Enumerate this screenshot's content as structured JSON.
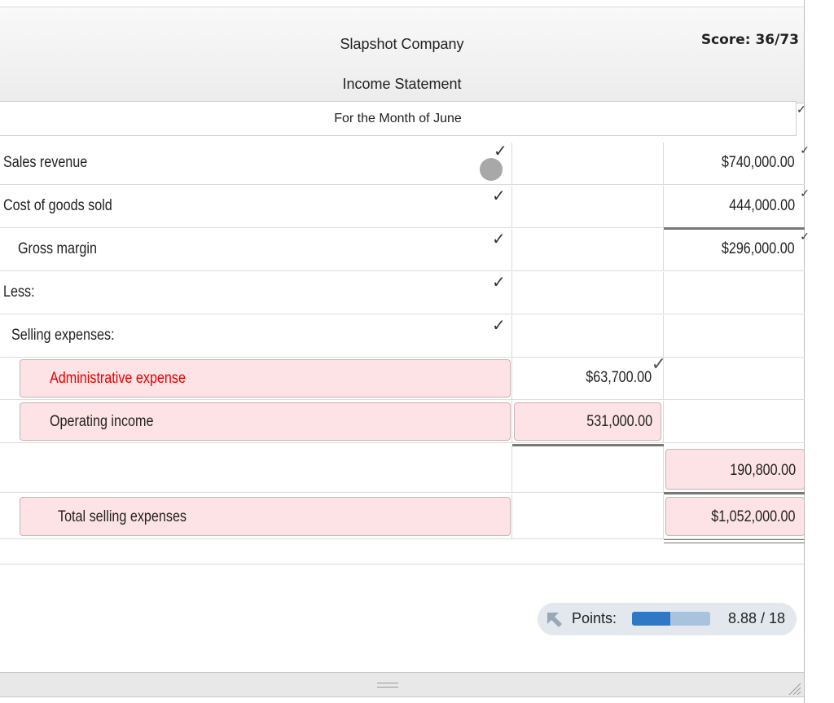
{
  "header": {
    "company": "Slapshot Company",
    "statement": "Income Statement",
    "period": "For the Month of June",
    "score": "Score: 36/73"
  },
  "rows": [
    {
      "label": "Sales revenue",
      "col2": "",
      "col3": "$740,000.00",
      "checked": true,
      "pink_label": false,
      "red": false
    },
    {
      "label": "Cost of goods sold",
      "col2": "",
      "col3": "444,000.00",
      "checked": true,
      "pink_label": false,
      "red": false
    },
    {
      "label": "Gross margin",
      "col2": "",
      "col3": "$296,000.00",
      "checked": true,
      "pink_label": false,
      "red": false
    },
    {
      "label": "Less:",
      "col2": "",
      "col3": "",
      "checked": true,
      "pink_label": false,
      "red": false
    },
    {
      "label": "Selling expenses:",
      "col2": "",
      "col3": "",
      "checked": true,
      "pink_label": false,
      "red": false
    },
    {
      "label": "Administrative expense",
      "col2": "$63,700.00",
      "col3": "",
      "checked": false,
      "pink_label": true,
      "red": true
    },
    {
      "label": "Operating income",
      "col2": "531,000.00",
      "col3": "",
      "checked": false,
      "pink_label": true,
      "red": false
    },
    {
      "label": "",
      "col2": "",
      "col3": "190,800.00",
      "checked": false,
      "pink_label": false,
      "red": false
    },
    {
      "label": "Total selling expenses",
      "col2": "",
      "col3": "$1,052,000.00",
      "checked": false,
      "pink_label": true,
      "red": false
    }
  ],
  "points": {
    "label": "Points:",
    "value": "8.88 / 18",
    "fraction": 0.49
  },
  "colors": {
    "accent": "#2f78c5",
    "error_red": "#e00000",
    "error_bg": "#fde3e6"
  }
}
